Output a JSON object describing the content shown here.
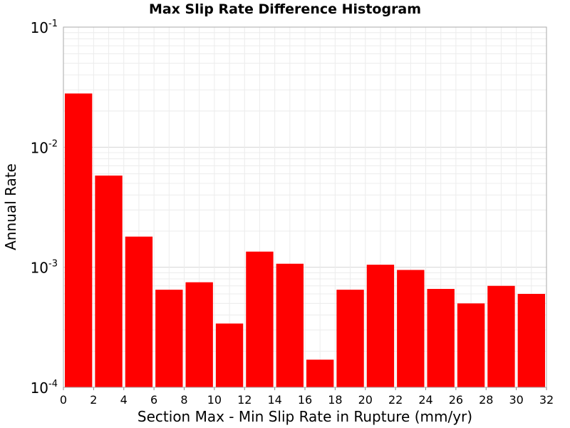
{
  "chart_data": {
    "type": "bar",
    "title": "Max Slip Rate Difference Histogram",
    "xlabel": "Section Max - Min Slip Rate in Rupture (mm/yr)",
    "ylabel": "Annual Rate",
    "xlim": [
      0,
      32
    ],
    "ylim": [
      0.0001,
      0.1
    ],
    "yscale": "log",
    "bin_width": 2,
    "x_ticks": [
      "0",
      "2",
      "4",
      "6",
      "8",
      "10",
      "12",
      "14",
      "16",
      "18",
      "20",
      "22",
      "24",
      "26",
      "28",
      "30",
      "32"
    ],
    "y_ticks": [
      {
        "base": "10",
        "exp": "-4",
        "value": 0.0001
      },
      {
        "base": "10",
        "exp": "-3",
        "value": 0.001
      },
      {
        "base": "10",
        "exp": "-2",
        "value": 0.01
      },
      {
        "base": "10",
        "exp": "-1",
        "value": 0.1
      }
    ],
    "bin_starts": [
      0,
      2,
      4,
      6,
      8,
      10,
      12,
      14,
      16,
      18,
      20,
      22,
      24,
      26,
      28,
      30
    ],
    "values": [
      0.028,
      0.0058,
      0.0018,
      0.00065,
      0.00075,
      0.00034,
      0.00135,
      0.00107,
      0.00017,
      0.00065,
      0.00105,
      0.00095,
      0.00066,
      0.0005,
      0.0007,
      0.0006
    ],
    "bar_color": "#ff0000",
    "grid": true
  }
}
